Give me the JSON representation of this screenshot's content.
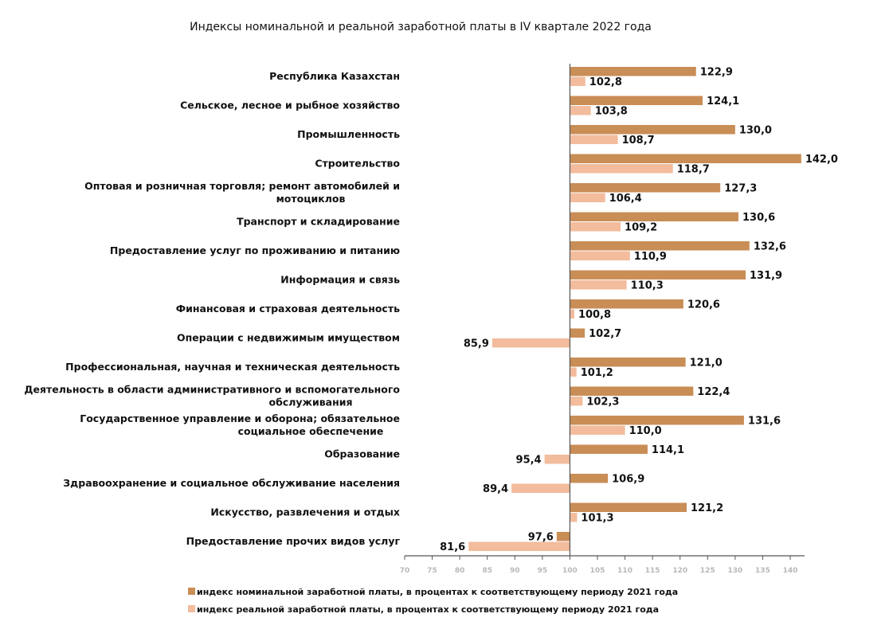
{
  "chart_data": {
    "type": "bar",
    "orientation": "horizontal",
    "title": "Индексы номинальной и реальной заработной платы в IV квартале 2022 года",
    "xlabel": "",
    "ylabel": "",
    "xlim": [
      70,
      140
    ],
    "x_ticks": [
      70,
      75,
      80,
      85,
      90,
      95,
      100,
      105,
      110,
      115,
      120,
      125,
      130,
      135,
      140
    ],
    "x_tick_labels": [
      "70",
      "75",
      "80",
      "85",
      "90",
      "95",
      "100",
      "105",
      "110",
      "115",
      "120",
      "125",
      "130",
      "135",
      "140"
    ],
    "baseline": 100,
    "grid": false,
    "legend_position": "bottom",
    "categories": [
      "Республика Казахстан",
      "Сельское, лесное и рыбное хозяйство",
      "Промышленность",
      "Строительство",
      "Оптовая и розничная торговля; ремонт автомобилей и мотоциклов",
      "Транспорт и складирование",
      "Предоставление услуг по проживанию и питанию",
      "Информация и связь",
      "Финансовая и страховая деятельность",
      "Операции с недвижимым имуществом",
      "Профессиональная, научная и техническая деятельность",
      "Деятельность в области административного и вспомогательного обслуживания",
      "Государственное управление и оборона; обязательное социальное обеспечение",
      "Образование",
      "Здравоохранение и социальное обслуживание населения",
      "Искусство, развлечения и отдых",
      "Предоставление прочих видов услуг"
    ],
    "category_lines": [
      [
        "Республика Казахстан"
      ],
      [
        "Сельское, лесное и рыбное хозяйство"
      ],
      [
        "Промышленность"
      ],
      [
        "Строительство"
      ],
      [
        "Оптовая и розничная торговля; ремонт автомобилей и",
        "мотоциклов"
      ],
      [
        "Транспорт и складирование"
      ],
      [
        "Предоставление услуг по проживанию и питанию"
      ],
      [
        "Информация и связь"
      ],
      [
        "Финансовая и страховая деятельность"
      ],
      [
        "Операции с недвижимым имуществом"
      ],
      [
        "Профессиональная, научная и техническая деятельность"
      ],
      [
        "Деятельность в области административного и вспомогательного",
        "обслуживания"
      ],
      [
        "Государственное управление и оборона; обязательное",
        "социальное обеспечение"
      ],
      [
        "Образование"
      ],
      [
        "Здравоохранение и социальное обслуживание населения"
      ],
      [
        "Искусство, развлечения и отдых"
      ],
      [
        "Предоставление прочих видов услуг"
      ]
    ],
    "series": [
      {
        "name": "индекс номинальной заработной платы, в процентах к соответствующему периоду 2021 года",
        "color": "#c98d56",
        "values": [
          122.9,
          124.1,
          130.0,
          142.0,
          127.3,
          130.6,
          132.6,
          131.9,
          120.6,
          102.7,
          121.0,
          122.4,
          131.6,
          114.1,
          106.9,
          121.2,
          97.6
        ],
        "labels": [
          "122,9",
          "124,1",
          "130,0",
          "142,0",
          "127,3",
          "130,6",
          "132,6",
          "131,9",
          "120,6",
          "102,7",
          "121,0",
          "122,4",
          "131,6",
          "114,1",
          "106,9",
          "121,2",
          "97,6"
        ]
      },
      {
        "name": "индекс реальной заработной платы, в процентах к соответствующему периоду 2021 года",
        "color": "#f2bc9d",
        "values": [
          102.8,
          103.8,
          108.7,
          118.7,
          106.4,
          109.2,
          110.9,
          110.3,
          100.8,
          85.9,
          101.2,
          102.3,
          110.0,
          95.4,
          89.4,
          101.3,
          81.6
        ],
        "labels": [
          "102,8",
          "103,8",
          "108,7",
          "118,7",
          "106,4",
          "109,2",
          "110,9",
          "110,3",
          "100,8",
          "85,9",
          "101,2",
          "102,3",
          "110,0",
          "95,4",
          "89,4",
          "101,3",
          "81,6"
        ]
      }
    ]
  }
}
